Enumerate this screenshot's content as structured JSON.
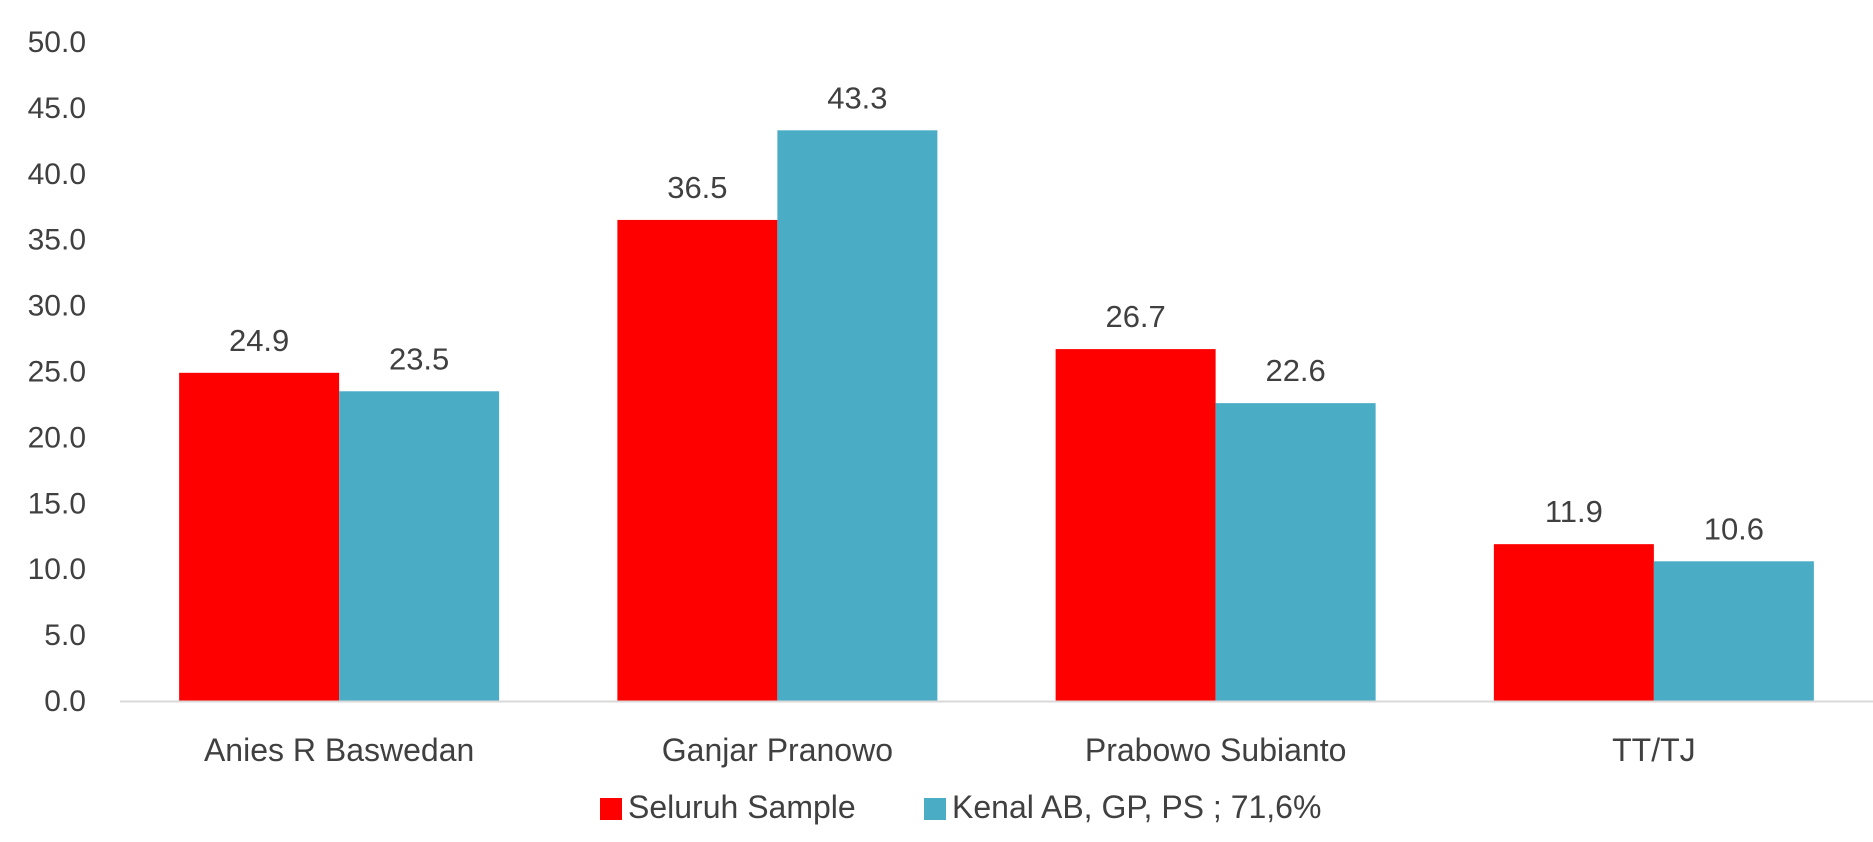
{
  "chart_data": {
    "type": "bar",
    "title": "",
    "xlabel": "",
    "ylabel": "",
    "ylim": [
      0,
      50
    ],
    "yticks": [
      "0.0",
      "5.0",
      "10.0",
      "15.0",
      "20.0",
      "25.0",
      "30.0",
      "35.0",
      "40.0",
      "45.0",
      "50.0"
    ],
    "categories": [
      "Anies R Baswedan",
      "Ganjar Pranowo",
      "Prabowo Subianto",
      "TT/TJ"
    ],
    "series": [
      {
        "name": "Seluruh Sample",
        "color": "#ff0000",
        "values": [
          24.9,
          36.5,
          26.7,
          11.9
        ],
        "labels": [
          "24.9",
          "36.5",
          "26.7",
          "11.9"
        ]
      },
      {
        "name": "Kenal AB, GP, PS ; 71,6%",
        "color": "#4bacc6",
        "values": [
          23.5,
          43.3,
          22.6,
          10.6
        ],
        "labels": [
          "23.5",
          "43.3",
          "22.6",
          "10.6"
        ]
      }
    ],
    "grid": false,
    "legend_position": "bottom"
  }
}
